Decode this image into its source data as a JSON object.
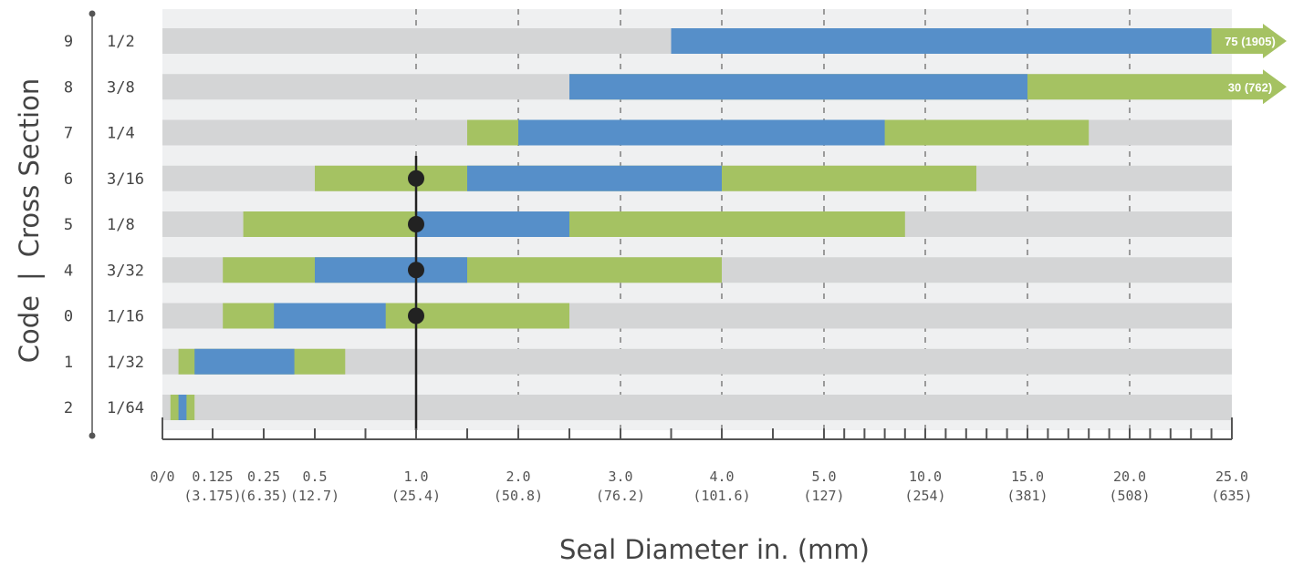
{
  "chart_data": {
    "type": "bar",
    "y_axis_label_code": "Code",
    "y_axis_label_separator": "|",
    "y_axis_label_section": "Cross Section",
    "xlabel": "Seal Diameter in. (mm)",
    "x_ticks": [
      {
        "value": 0,
        "top": "0/0",
        "bottom": ""
      },
      {
        "value": 0.125,
        "top": "0.125",
        "bottom": "(3.175)"
      },
      {
        "value": 0.25,
        "top": "0.25",
        "bottom": "(6.35)"
      },
      {
        "value": 0.5,
        "top": "0.5",
        "bottom": "(12.7)"
      },
      {
        "value": 1.0,
        "top": "1.0",
        "bottom": "(25.4)"
      },
      {
        "value": 2.0,
        "top": "2.0",
        "bottom": "(50.8)"
      },
      {
        "value": 3.0,
        "top": "3.0",
        "bottom": "(76.2)"
      },
      {
        "value": 4.0,
        "top": "4.0",
        "bottom": "(101.6)"
      },
      {
        "value": 5.0,
        "top": "5.0",
        "bottom": "(127)"
      },
      {
        "value": 10.0,
        "top": "10.0",
        "bottom": "(254)"
      },
      {
        "value": 15.0,
        "top": "15.0",
        "bottom": "(381)"
      },
      {
        "value": 20.0,
        "top": "20.0",
        "bottom": "(508)"
      },
      {
        "value": 25.0,
        "top": "25.0",
        "bottom": "(635)"
      }
    ],
    "rows": [
      {
        "code": "9",
        "section": "1/2",
        "green": [
          3.5,
          25.0
        ],
        "blue": [
          3.5,
          24.0
        ],
        "arrow_label": "75 (1905)",
        "marker": null
      },
      {
        "code": "8",
        "section": "3/8",
        "green": [
          2.5,
          25.0
        ],
        "blue": [
          2.5,
          15.0
        ],
        "arrow_label": "30 (762)",
        "marker": null
      },
      {
        "code": "7",
        "section": "1/4",
        "green": [
          1.5,
          18.0
        ],
        "blue": [
          2.0,
          8.0
        ],
        "arrow_label": "",
        "marker": null
      },
      {
        "code": "6",
        "section": "3/16",
        "green": [
          0.5,
          12.5
        ],
        "blue": [
          1.5,
          4.0
        ],
        "arrow_label": "",
        "marker": 1.0
      },
      {
        "code": "5",
        "section": "1/8",
        "green": [
          0.2,
          9.0
        ],
        "blue": [
          1.0,
          2.5
        ],
        "arrow_label": "",
        "marker": 1.0
      },
      {
        "code": "4",
        "section": "3/32",
        "green": [
          0.15,
          4.0
        ],
        "blue": [
          0.5,
          1.5
        ],
        "arrow_label": "",
        "marker": 1.0
      },
      {
        "code": "0",
        "section": "1/16",
        "green": [
          0.15,
          2.5
        ],
        "blue": [
          0.3,
          0.85
        ],
        "arrow_label": "",
        "marker": 1.0
      },
      {
        "code": "1",
        "section": "1/32",
        "green": [
          0.04,
          0.65
        ],
        "blue": [
          0.08,
          0.4
        ],
        "arrow_label": "",
        "marker": null
      },
      {
        "code": "2",
        "section": "1/64",
        "green": [
          0.02,
          0.08
        ],
        "blue": [
          0.04,
          0.06
        ],
        "arrow_label": "",
        "marker": null
      }
    ],
    "reference_line": 1.0,
    "colors": {
      "background_band": "#eff0f1",
      "track": "#d4d5d6",
      "green": "#a5c262",
      "blue": "#568fc9",
      "marker": "#222222",
      "grid": "#9a9a9a"
    }
  }
}
